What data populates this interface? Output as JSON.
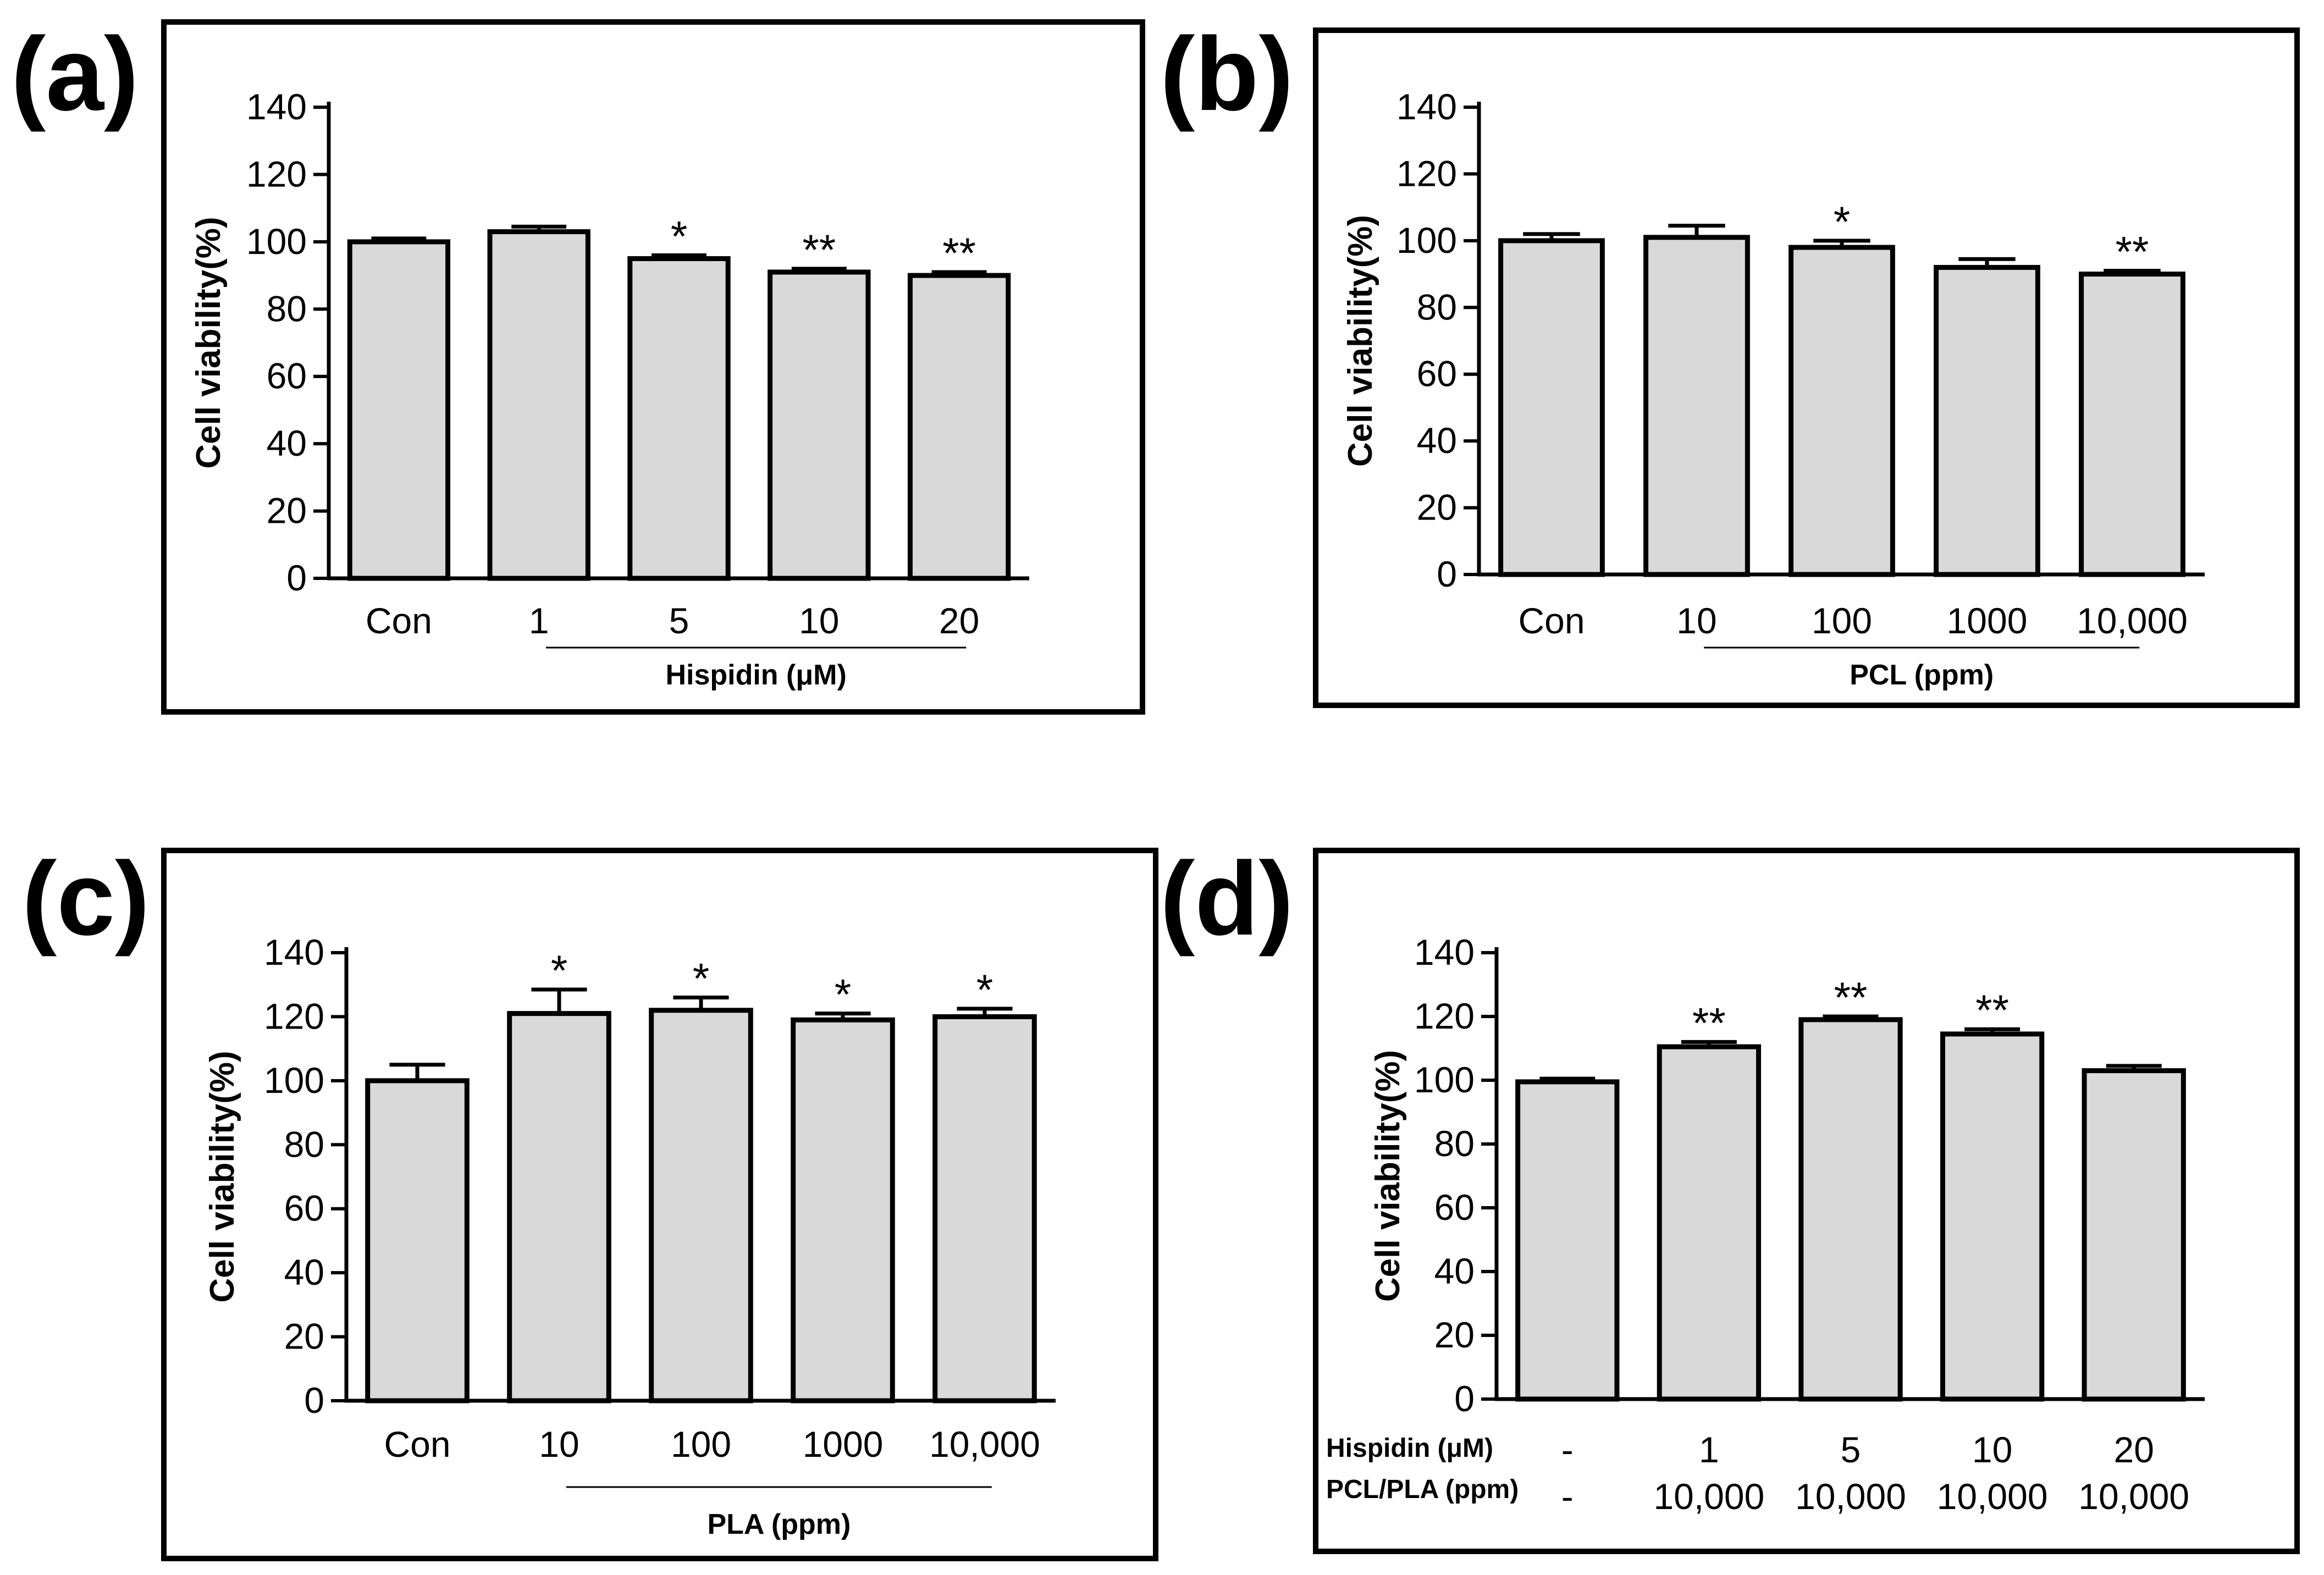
{
  "chart_data": [
    {
      "type": "bar",
      "panel": "(a)",
      "ylabel": "Cell viability(%)",
      "ylim": [
        0,
        140
      ],
      "yticks": [
        0,
        20,
        40,
        60,
        80,
        100,
        120,
        140
      ],
      "categories": [
        "Con",
        "1",
        "5",
        "10",
        "20"
      ],
      "values": [
        100,
        103,
        95,
        91,
        90
      ],
      "errors": [
        1,
        1.5,
        1,
        1,
        1
      ],
      "significance": [
        "",
        "",
        "*",
        "**",
        "**"
      ],
      "group_label": "Hispidin (μM)",
      "group_span": [
        1,
        4
      ],
      "colors": {
        "bar": "#d9d9d9",
        "edge": "#000000"
      }
    },
    {
      "type": "bar",
      "panel": "(b)",
      "ylabel": "Cell viability(%)",
      "ylim": [
        0,
        140
      ],
      "yticks": [
        0,
        20,
        40,
        60,
        80,
        100,
        120,
        140
      ],
      "categories": [
        "Con",
        "10",
        "100",
        "1000",
        "10,000"
      ],
      "values": [
        100,
        101,
        98,
        92,
        90
      ],
      "errors": [
        2,
        3.5,
        2,
        2.5,
        1
      ],
      "significance": [
        "",
        "",
        "*",
        "",
        "**"
      ],
      "group_label": "PCL (ppm)",
      "group_span": [
        1,
        4
      ],
      "colors": {
        "bar": "#d9d9d9",
        "edge": "#000000"
      }
    },
    {
      "type": "bar",
      "panel": "(c)",
      "ylabel": "Cell viability(%)",
      "ylim": [
        0,
        140
      ],
      "yticks": [
        0,
        20,
        40,
        60,
        80,
        100,
        120,
        140
      ],
      "categories": [
        "Con",
        "10",
        "100",
        "1000",
        "10,000"
      ],
      "values": [
        100,
        121,
        122,
        119,
        120
      ],
      "errors": [
        5,
        7.5,
        4,
        2,
        2.5
      ],
      "significance": [
        "",
        "*",
        "*",
        "*",
        "*"
      ],
      "group_label": "PLA (ppm)",
      "group_span": [
        1,
        4
      ],
      "colors": {
        "bar": "#d9d9d9",
        "edge": "#000000"
      }
    },
    {
      "type": "bar",
      "panel": "(d)",
      "ylabel": "Cell viability(%)",
      "ylim": [
        0,
        140
      ],
      "yticks": [
        0,
        20,
        40,
        60,
        80,
        100,
        120,
        140
      ],
      "categories": [
        "-",
        "1",
        "5",
        "10",
        "20"
      ],
      "values": [
        99.5,
        110.5,
        119,
        114.5,
        103
      ],
      "errors": [
        1,
        1.5,
        1,
        1.5,
        1.5
      ],
      "significance": [
        "",
        "**",
        "**",
        "**",
        ""
      ],
      "row_labels": [
        "Hispidin (μM)",
        "PCL/PLA (ppm)"
      ],
      "second_row": [
        "-",
        "10,000",
        "10,000",
        "10,000",
        "10,000"
      ],
      "colors": {
        "bar": "#d9d9d9",
        "edge": "#000000"
      }
    }
  ]
}
